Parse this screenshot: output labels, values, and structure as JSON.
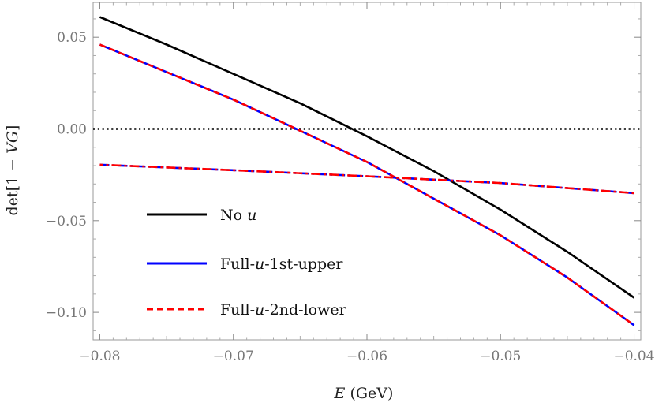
{
  "chart_data": {
    "type": "line",
    "xlabel": "E (GeV)",
    "ylabel": "det[1 − VG]",
    "xlim": [
      -0.0805,
      -0.0395
    ],
    "ylim": [
      -0.115,
      0.069
    ],
    "grid": false,
    "legend_position": "bottom-left",
    "x_ticks": [
      -0.08,
      -0.07,
      -0.06,
      -0.05,
      -0.04
    ],
    "x_tick_labels": [
      "−0.08",
      "−0.07",
      "−0.06",
      "−0.05",
      "−0.04"
    ],
    "y_ticks": [
      0.05,
      0.0,
      -0.05,
      -0.1
    ],
    "y_tick_labels": [
      "0.05",
      "0.00",
      "−0.05",
      "−0.10"
    ],
    "reference_line": {
      "y": 0.0,
      "style": "dotted",
      "color": "#000000"
    },
    "series": [
      {
        "name": "No u",
        "color": "#000000",
        "style": "solid",
        "x": [
          -0.08,
          -0.075,
          -0.07,
          -0.065,
          -0.06,
          -0.055,
          -0.05,
          -0.045,
          -0.04
        ],
        "y": [
          0.061,
          0.046,
          0.03,
          0.014,
          -0.004,
          -0.023,
          -0.044,
          -0.067,
          -0.092
        ]
      },
      {
        "name": "Full-u-1st-upper",
        "color": "#0000ff",
        "style": "solid",
        "x": [
          -0.08,
          -0.075,
          -0.07,
          -0.065,
          -0.06,
          -0.055,
          -0.05,
          -0.045,
          -0.04
        ],
        "y": [
          0.046,
          0.031,
          0.016,
          -0.001,
          -0.018,
          -0.038,
          -0.058,
          -0.081,
          -0.107
        ]
      },
      {
        "name": "Full-u-2nd-lower",
        "color": "#ff0000",
        "style": "dashed",
        "x": [
          -0.08,
          -0.075,
          -0.07,
          -0.065,
          -0.06,
          -0.055,
          -0.05,
          -0.045,
          -0.04
        ],
        "y": [
          0.046,
          0.031,
          0.016,
          -0.001,
          -0.018,
          -0.038,
          -0.058,
          -0.081,
          -0.107
        ]
      },
      {
        "color": "#0000ff",
        "style": "dashdot",
        "x": [
          -0.08,
          -0.07,
          -0.06,
          -0.05,
          -0.04
        ],
        "y": [
          -0.0195,
          -0.0225,
          -0.0258,
          -0.0295,
          -0.035
        ]
      },
      {
        "color": "#ff0000",
        "style": "dashdot",
        "x": [
          -0.08,
          -0.07,
          -0.06,
          -0.05,
          -0.04
        ],
        "y": [
          -0.0195,
          -0.0225,
          -0.0258,
          -0.0295,
          -0.035
        ]
      }
    ],
    "legend": [
      {
        "label_main": "No ",
        "label_italic": "u",
        "label_rest": "",
        "color": "#000000",
        "style": "solid"
      },
      {
        "label_main": "Full-",
        "label_italic": "u",
        "label_rest": "-1st-upper",
        "color": "#0000ff",
        "style": "solid"
      },
      {
        "label_main": "Full-",
        "label_italic": "u",
        "label_rest": "-2nd-lower",
        "color": "#ff0000",
        "style": "dashed"
      }
    ]
  }
}
